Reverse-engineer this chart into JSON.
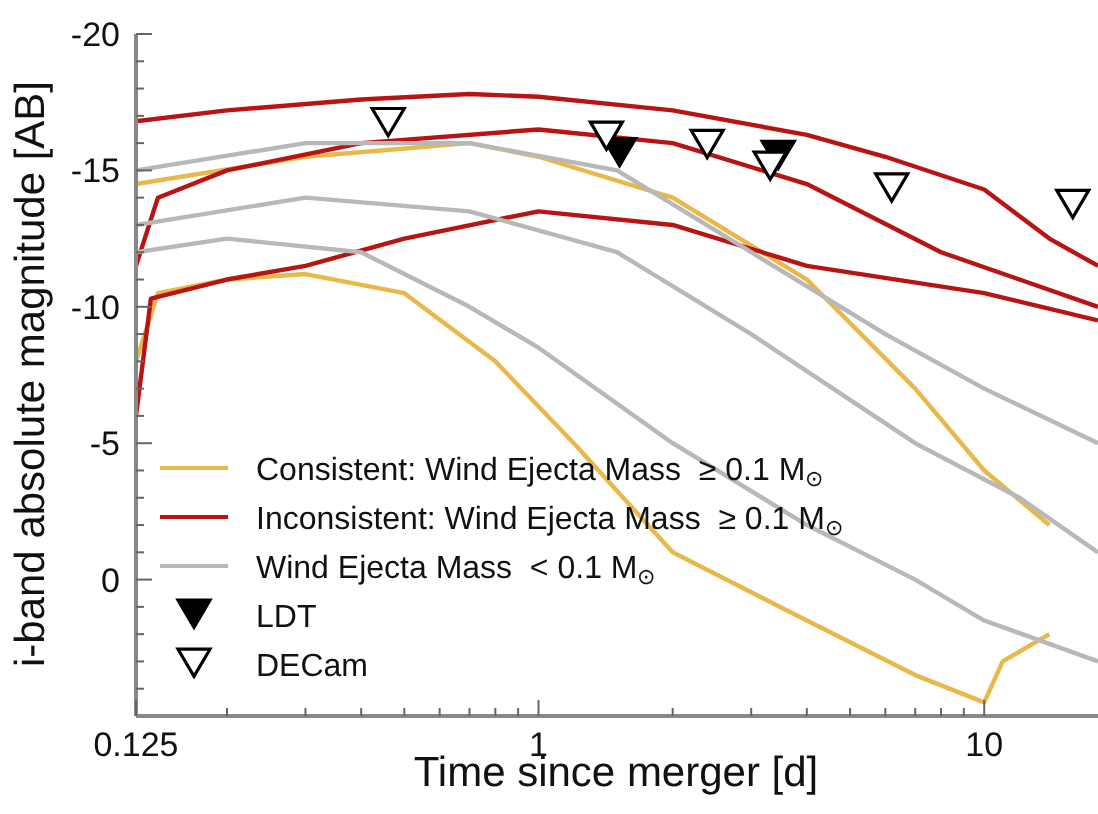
{
  "chart_data": {
    "type": "line",
    "xlabel": "Time since merger [d]",
    "ylabel": "i-band absolute magnitude [AB]",
    "log": "x",
    "grid": false,
    "legend": "bottom left",
    "marker": "none",
    "line_style": "solid",
    "xlim": [
      0.125,
      18
    ],
    "xticks": [
      0.125,
      {
        "value": 0.2,
        "label": null
      },
      {
        "value": 0.3,
        "label": null
      },
      {
        "value": 0.4,
        "label": null
      },
      {
        "value": 0.5,
        "label": null
      },
      {
        "value": 0.6,
        "label": null
      },
      {
        "value": 0.7,
        "label": null
      },
      {
        "value": 0.8,
        "label": null
      },
      {
        "value": 0.9,
        "label": null
      },
      1,
      {
        "value": 2,
        "label": null
      },
      {
        "value": 3,
        "label": null
      },
      {
        "value": 4,
        "label": null
      },
      {
        "value": 5,
        "label": null
      },
      {
        "value": 6,
        "label": null
      },
      {
        "value": 7,
        "label": null
      },
      {
        "value": 8,
        "label": null
      },
      {
        "value": 9,
        "label": null
      },
      10
    ],
    "ylim": [
      5,
      -20
    ],
    "yticks": [
      -20,
      {
        "value": -19,
        "label": null
      },
      {
        "value": -18,
        "label": null
      },
      {
        "value": -17,
        "label": null
      },
      {
        "value": -16,
        "label": null
      },
      -15,
      {
        "value": -14,
        "label": null
      },
      {
        "value": -13,
        "label": null
      },
      {
        "value": -12,
        "label": null
      },
      {
        "value": -11,
        "label": null
      },
      -10,
      {
        "value": -9,
        "label": null
      },
      {
        "value": -8,
        "label": null
      },
      {
        "value": -7,
        "label": null
      },
      {
        "value": -6,
        "label": null
      },
      -5,
      {
        "value": -4,
        "label": null
      },
      {
        "value": -3,
        "label": null
      },
      {
        "value": -2,
        "label": null
      },
      {
        "value": -1,
        "label": null
      },
      0,
      {
        "value": 1,
        "label": null
      },
      {
        "value": 2,
        "label": null
      },
      {
        "value": 3,
        "label": null
      },
      {
        "value": 4,
        "label": null
      }
    ],
    "series": [
      {
        "name": "Consistent: Wind Ejecta Mass  ≥ 0.1 M$_{⊙}$",
        "color": "#e8b84a",
        "x": [
          0.125,
          0.3,
          0.7,
          1,
          2,
          4,
          7,
          10,
          14
        ],
        "values": [
          -14.5,
          -15.5,
          -16,
          -15.5,
          -14,
          -11,
          -7,
          -4,
          -2
        ]
      },
      {
        "color": "#e8b84a",
        "x": [
          0.125,
          0.14,
          0.2,
          0.3,
          0.5,
          0.8,
          1.2,
          2,
          4,
          7,
          10,
          11,
          14
        ],
        "values": [
          -8,
          -10.5,
          -11,
          -11.2,
          -10.5,
          -8,
          -5,
          -1,
          1.5,
          3.5,
          4.5,
          3,
          2
        ]
      },
      {
        "name": "Inconsistent: Wind Ejecta Mass  ≥ 0.1 M$_{⊙}$",
        "color": "#b81414",
        "x": [
          0.125,
          0.2,
          0.4,
          0.7,
          1,
          2,
          4,
          6,
          10,
          14,
          18
        ],
        "values": [
          -16.8,
          -17.2,
          -17.6,
          -17.8,
          -17.7,
          -17.2,
          -16.3,
          -15.5,
          -14.3,
          -12.5,
          -11.5
        ]
      },
      {
        "color": "#b81414",
        "x": [
          0.125,
          0.14,
          0.2,
          0.4,
          1,
          2,
          4,
          8,
          12,
          18
        ],
        "values": [
          -11.5,
          -14,
          -15,
          -16,
          -16.5,
          -16,
          -14.5,
          -12,
          -11,
          -10
        ]
      },
      {
        "color": "#b81414",
        "x": [
          0.125,
          0.135,
          0.2,
          0.3,
          0.5,
          1,
          2,
          4,
          10,
          18
        ],
        "values": [
          -6,
          -10.3,
          -11,
          -11.5,
          -12.5,
          -13.5,
          -13,
          -11.5,
          -10.5,
          -9.5
        ]
      },
      {
        "name": "Wind Ejecta Mass  < 0.1 M$_{⊙}$",
        "color": "#b8b8b8",
        "x": [
          0.125,
          0.2,
          0.4,
          0.7,
          1,
          2,
          4,
          7,
          10,
          18
        ],
        "values": [
          -12,
          -12.5,
          -12,
          -10,
          -8.5,
          -5,
          -2,
          0,
          1.5,
          3
        ]
      },
      {
        "color": "#b8b8b8",
        "x": [
          0.125,
          0.3,
          0.7,
          1.5,
          3,
          6,
          10,
          18
        ],
        "values": [
          -15,
          -16,
          -16,
          -15,
          -12,
          -9,
          -7,
          -5
        ]
      },
      {
        "color": "#b8b8b8",
        "x": [
          0.125,
          0.3,
          0.7,
          1.5,
          3,
          7,
          12,
          18
        ],
        "values": [
          -13,
          -14,
          -13.5,
          -12,
          -9,
          -5,
          -3,
          -1
        ]
      },
      {
        "type": "scatter",
        "name": "LDT",
        "color": "#000000",
        "marker": "triangle",
        "x": [
          1.52,
          3.45
        ],
        "values": [
          -15.7,
          -15.6
        ]
      },
      {
        "type": "scatter",
        "name": "DECam",
        "color": "#ffffff",
        "marker": "triangle",
        "x": [
          0.46,
          1.42,
          2.39,
          3.31,
          6.2,
          15.8
        ],
        "values": [
          -16.8,
          -16.3,
          -16.0,
          -15.2,
          -14.4,
          -13.8
        ]
      }
    ]
  }
}
